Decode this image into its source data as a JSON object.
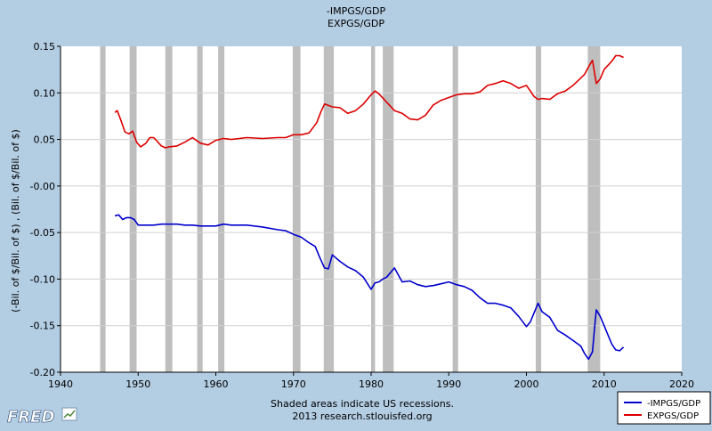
{
  "chart_data": {
    "type": "line",
    "title": "-IMPGS/GDP",
    "subtitle": "EXPGS/GDP",
    "ylabel": "(-Bil. of $/Bil. of $) , (Bil. of $/Bil. of $)",
    "xlim": [
      1940,
      2020
    ],
    "ylim": [
      -0.2,
      0.15
    ],
    "x_ticks": [
      1940,
      1950,
      1960,
      1970,
      1980,
      1990,
      2000,
      2010,
      2020
    ],
    "y_ticks": [
      -0.2,
      -0.15,
      -0.1,
      -0.05,
      0.0,
      0.05,
      0.1,
      0.15
    ],
    "y_tick_labels": [
      "-0.20",
      "-0.15",
      "-0.10",
      "-0.05",
      "-0.00",
      "0.05",
      "0.10",
      "0.15"
    ],
    "grid": "horizontal",
    "legend_position": "bottom-right",
    "recessions": [
      [
        1945.1,
        1945.8
      ],
      [
        1948.9,
        1949.8
      ],
      [
        1953.5,
        1954.4
      ],
      [
        1957.6,
        1958.3
      ],
      [
        1960.3,
        1961.1
      ],
      [
        1969.9,
        1970.9
      ],
      [
        1973.9,
        1975.2
      ],
      [
        1980.0,
        1980.5
      ],
      [
        1981.5,
        1982.9
      ],
      [
        1990.5,
        1991.2
      ],
      [
        2001.2,
        2001.9
      ],
      [
        2007.9,
        2009.5
      ]
    ],
    "series": [
      {
        "name": "-IMPGS/GDP",
        "color": "#0000cc",
        "x": [
          1947.0,
          1947.5,
          1948.0,
          1948.5,
          1949.0,
          1949.5,
          1950.0,
          1951.0,
          1952.0,
          1953.0,
          1954.0,
          1955.0,
          1956.0,
          1957.0,
          1958.0,
          1959.0,
          1960.0,
          1961.0,
          1962.0,
          1964.0,
          1966.0,
          1968.0,
          1969.0,
          1969.5,
          1970.0,
          1971.0,
          1972.0,
          1972.8,
          1973.3,
          1974.0,
          1974.5,
          1975.0,
          1976.0,
          1977.0,
          1978.0,
          1979.0,
          1980.0,
          1980.5,
          1981.0,
          1981.5,
          1982.0,
          1983.0,
          1984.0,
          1985.0,
          1986.0,
          1987.0,
          1988.0,
          1989.0,
          1990.0,
          1991.0,
          1992.0,
          1993.0,
          1994.0,
          1995.0,
          1996.0,
          1997.0,
          1998.0,
          1999.0,
          2000.0,
          2000.5,
          2001.0,
          2001.5,
          2002.0,
          2003.0,
          2004.0,
          2005.0,
          2006.0,
          2007.0,
          2007.5,
          2008.0,
          2008.5,
          2008.8,
          2009.0,
          2009.5,
          2010.0,
          2010.5,
          2011.0,
          2011.5,
          2012.0,
          2012.5
        ],
        "values": [
          -0.032,
          -0.031,
          -0.036,
          -0.034,
          -0.034,
          -0.036,
          -0.042,
          -0.042,
          -0.042,
          -0.041,
          -0.041,
          -0.041,
          -0.042,
          -0.042,
          -0.043,
          -0.043,
          -0.043,
          -0.041,
          -0.042,
          -0.042,
          -0.044,
          -0.047,
          -0.048,
          -0.05,
          -0.052,
          -0.055,
          -0.061,
          -0.065,
          -0.075,
          -0.088,
          -0.089,
          -0.074,
          -0.081,
          -0.087,
          -0.091,
          -0.098,
          -0.111,
          -0.104,
          -0.103,
          -0.1,
          -0.098,
          -0.088,
          -0.103,
          -0.102,
          -0.106,
          -0.108,
          -0.107,
          -0.105,
          -0.103,
          -0.106,
          -0.108,
          -0.112,
          -0.12,
          -0.126,
          -0.126,
          -0.128,
          -0.131,
          -0.14,
          -0.151,
          -0.146,
          -0.136,
          -0.126,
          -0.135,
          -0.141,
          -0.155,
          -0.16,
          -0.166,
          -0.172,
          -0.18,
          -0.186,
          -0.178,
          -0.15,
          -0.133,
          -0.14,
          -0.15,
          -0.16,
          -0.17,
          -0.176,
          -0.177,
          -0.173
        ]
      },
      {
        "name": "EXPGS/GDP",
        "color": "#dd0000",
        "x": [
          1947.0,
          1947.3,
          1947.8,
          1948.3,
          1948.8,
          1949.3,
          1949.8,
          1950.3,
          1951.0,
          1951.5,
          1952.0,
          1953.0,
          1953.5,
          1954.0,
          1955.0,
          1956.0,
          1957.0,
          1958.0,
          1959.0,
          1960.0,
          1961.0,
          1962.0,
          1964.0,
          1966.0,
          1968.0,
          1969.0,
          1970.0,
          1971.0,
          1972.0,
          1973.0,
          1973.5,
          1974.0,
          1975.0,
          1976.0,
          1977.0,
          1978.0,
          1979.0,
          1980.0,
          1980.5,
          1981.0,
          1982.0,
          1983.0,
          1984.0,
          1985.0,
          1986.0,
          1987.0,
          1988.0,
          1989.0,
          1990.0,
          1991.0,
          1992.0,
          1993.0,
          1994.0,
          1995.0,
          1996.0,
          1997.0,
          1998.0,
          1999.0,
          2000.0,
          2000.5,
          2001.0,
          2001.5,
          2002.0,
          2003.0,
          2004.0,
          2005.0,
          2006.0,
          2007.0,
          2007.5,
          2008.0,
          2008.5,
          2009.0,
          2009.5,
          2010.0,
          2011.0,
          2011.5,
          2012.0,
          2012.5
        ],
        "values": [
          0.079,
          0.081,
          0.07,
          0.058,
          0.056,
          0.059,
          0.047,
          0.042,
          0.046,
          0.052,
          0.052,
          0.043,
          0.041,
          0.042,
          0.043,
          0.047,
          0.052,
          0.046,
          0.044,
          0.049,
          0.051,
          0.05,
          0.052,
          0.051,
          0.052,
          0.052,
          0.055,
          0.055,
          0.057,
          0.068,
          0.079,
          0.088,
          0.085,
          0.084,
          0.078,
          0.081,
          0.088,
          0.098,
          0.102,
          0.099,
          0.09,
          0.081,
          0.078,
          0.072,
          0.071,
          0.076,
          0.087,
          0.092,
          0.095,
          0.098,
          0.099,
          0.099,
          0.101,
          0.108,
          0.11,
          0.113,
          0.11,
          0.105,
          0.108,
          0.102,
          0.096,
          0.093,
          0.094,
          0.093,
          0.099,
          0.102,
          0.108,
          0.116,
          0.12,
          0.128,
          0.135,
          0.11,
          0.115,
          0.125,
          0.134,
          0.14,
          0.14,
          0.138
        ]
      }
    ],
    "footer_line1": "Shaded areas indicate US recessions.",
    "footer_line2": "2013 research.stlouisfed.org",
    "brand": "FRED"
  },
  "colors": {
    "background": "#b3cde3",
    "plot": "#ffffff",
    "recession": "#bebebe",
    "gridline": "#d0d0d0"
  }
}
